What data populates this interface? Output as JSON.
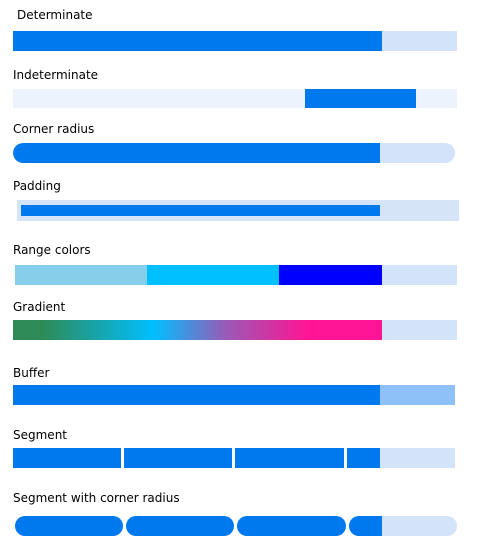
{
  "colors": {
    "accent": "#0078ee",
    "track": "#d3e3fa",
    "indeterminate_track": "#ecf3fd",
    "buffer": "#8dc1f7",
    "padding_track": "#d6e4f7",
    "range": [
      "#87ceeb",
      "#00bfff",
      "#0000ff"
    ],
    "gradient": [
      "#2e8b57",
      "#00bfff",
      "#ff1493"
    ]
  },
  "bars": [
    {
      "key": "determinate",
      "label": "Determinate",
      "value": 0.83
    },
    {
      "key": "indeterminate",
      "label": "Indeterminate",
      "indicator_start": 0.657,
      "indicator_end": 0.907
    },
    {
      "key": "corner-radius",
      "label": "Corner radius",
      "value": 0.83
    },
    {
      "key": "padding",
      "label": "Padding",
      "value": 0.83
    },
    {
      "key": "range-colors",
      "label": "Range colors",
      "value": 0.83,
      "range_stops": [
        0.3,
        0.6
      ]
    },
    {
      "key": "gradient",
      "label": "Gradient",
      "value": 0.83
    },
    {
      "key": "buffer",
      "label": "Buffer",
      "value": 0.83,
      "buffer_value": 1.0
    },
    {
      "key": "segment",
      "label": "Segment",
      "value": 0.83,
      "segments": 4
    },
    {
      "key": "segment-radius",
      "label": "Segment with corner radius",
      "value": 0.83,
      "segments": 4
    }
  ]
}
